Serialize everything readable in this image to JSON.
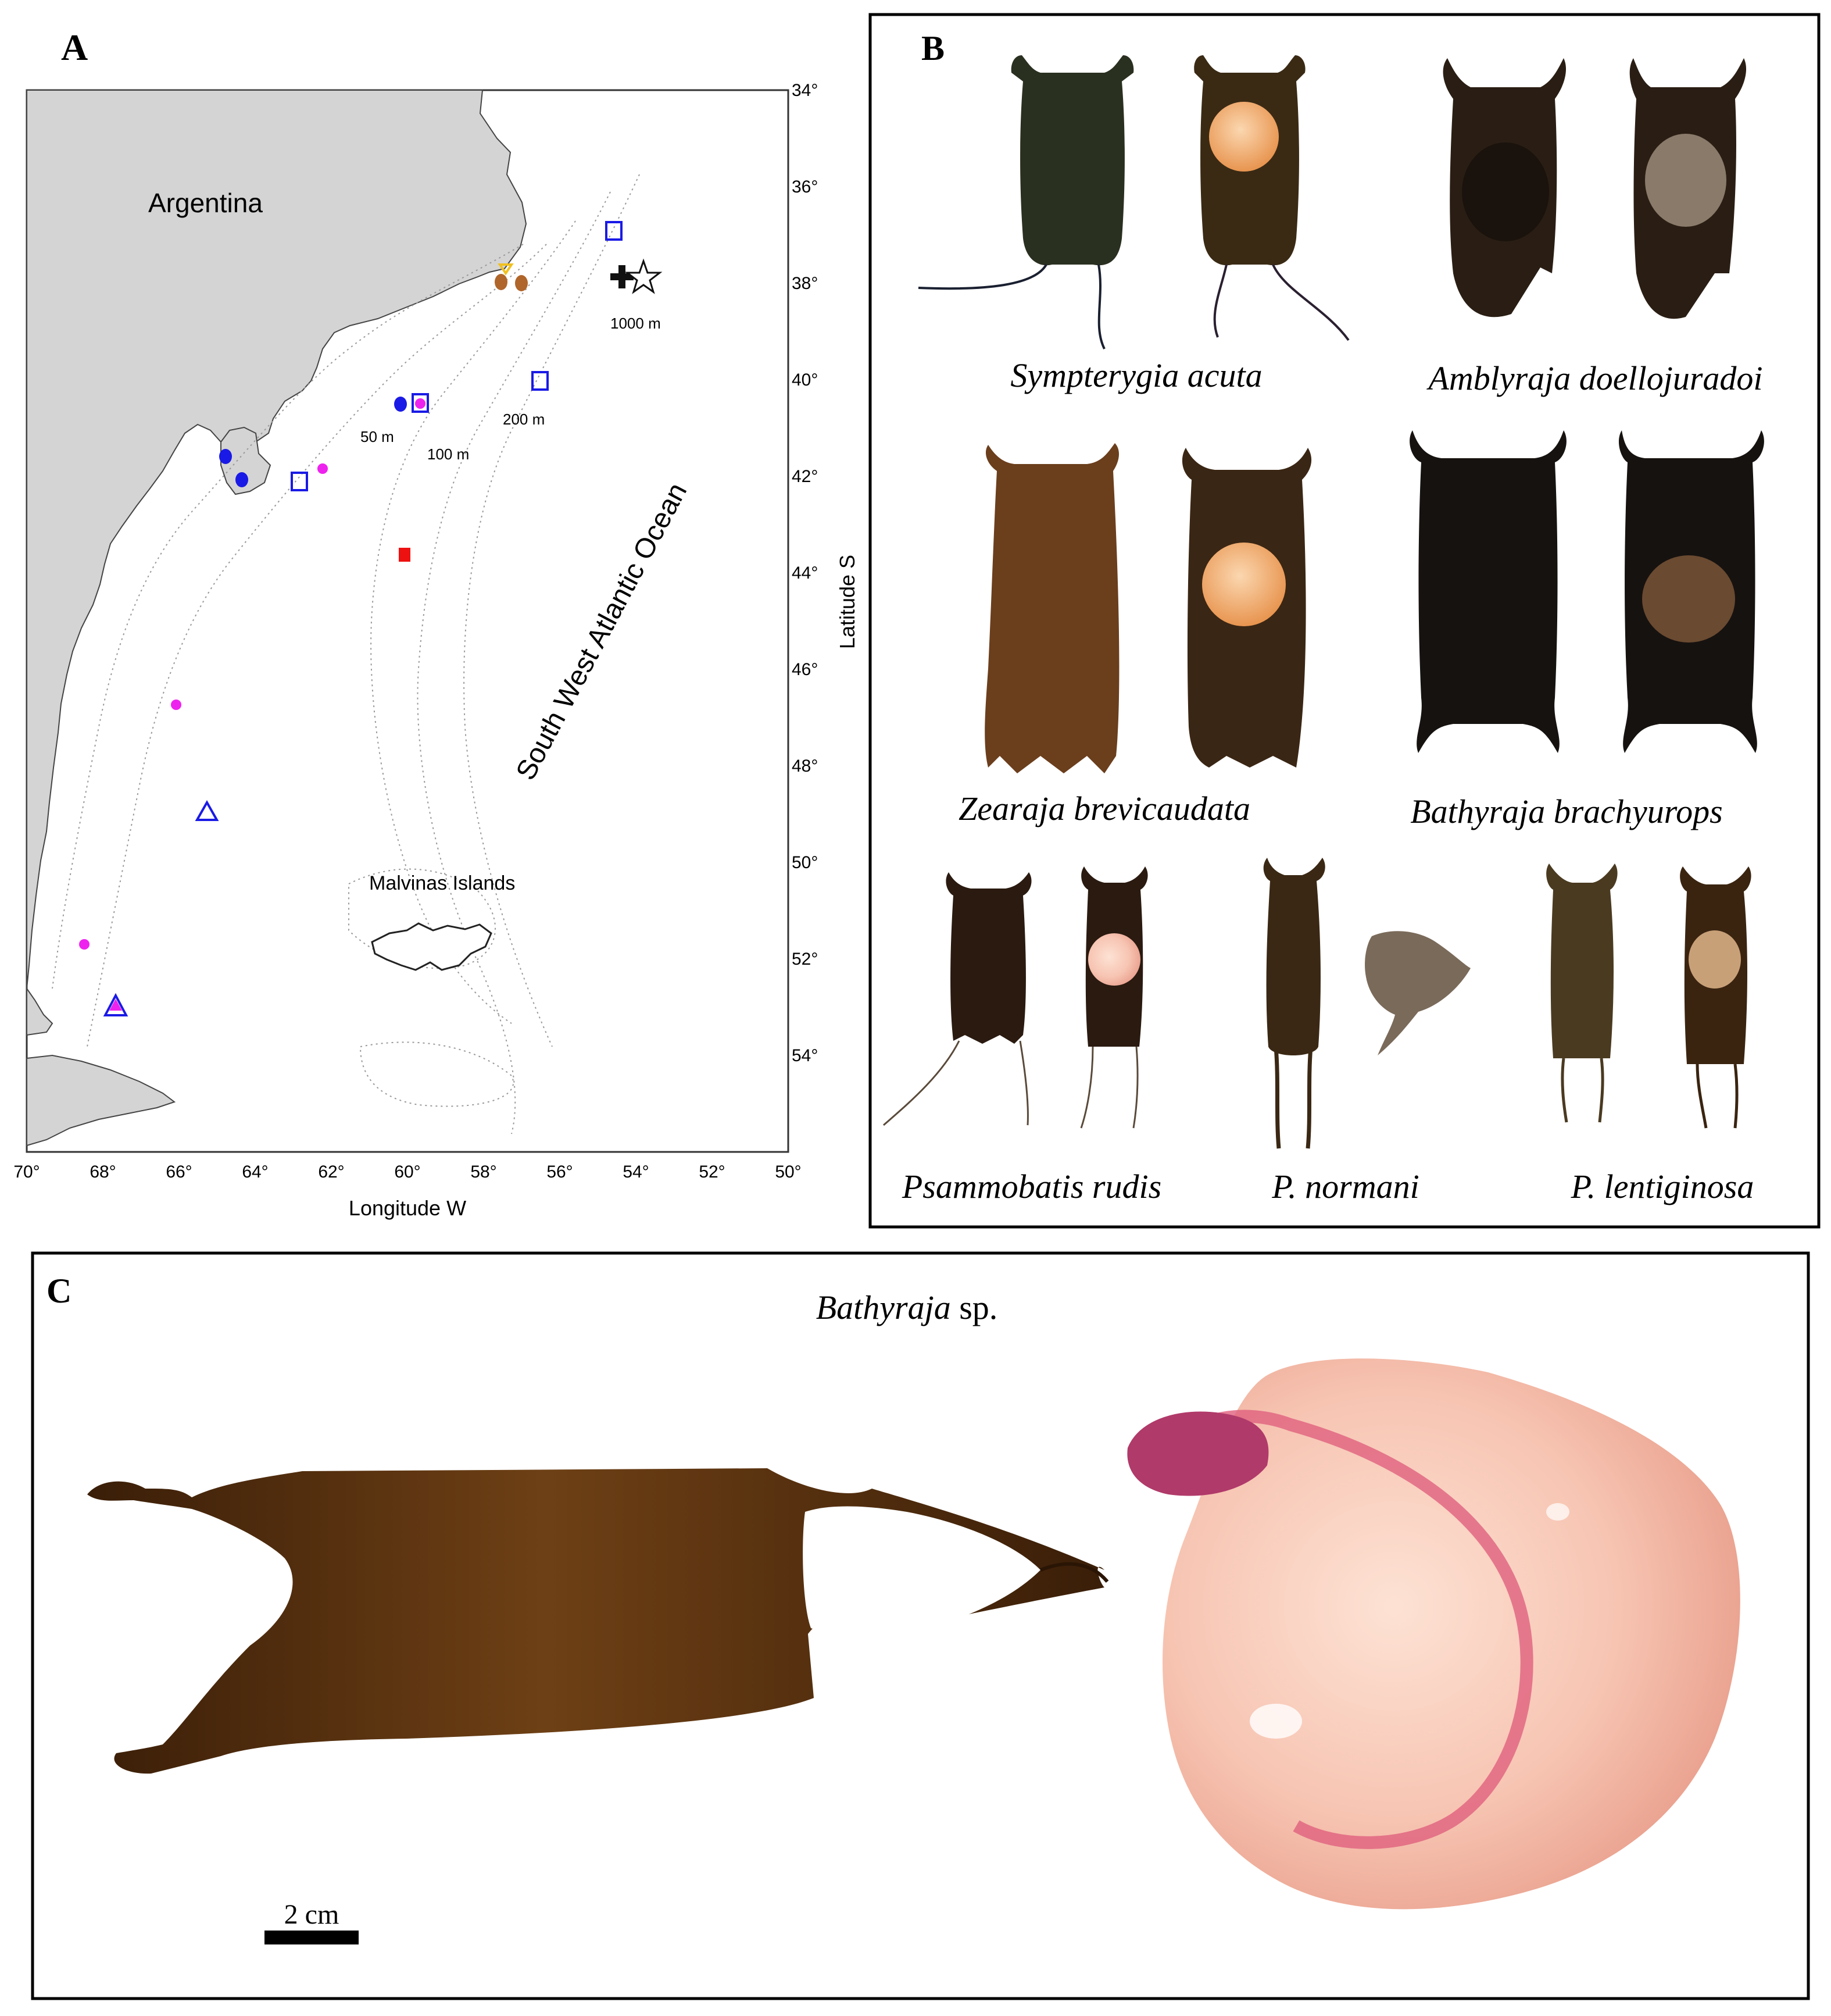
{
  "panel_a": {
    "label": "A",
    "country": "Argentina",
    "ocean": "South West Atlantic Ocean",
    "islands": "Malvinas Islands",
    "x_axis_title": "Longitude W",
    "y_axis_title": "Latitude S",
    "longitude_ticks": [
      "70°",
      "68°",
      "66°",
      "64°",
      "62°",
      "60°",
      "58°",
      "56°",
      "54°",
      "52°",
      "50°"
    ],
    "latitude_ticks": [
      "34°",
      "36°",
      "38°",
      "40°",
      "42°",
      "44°",
      "46°",
      "48°",
      "50°",
      "52°",
      "54°"
    ],
    "isobaths": [
      "50 m",
      "100 m",
      "200 m",
      "1000 m"
    ],
    "colors": {
      "land": "#d4d4d4",
      "blue": "#1a1ae6",
      "magenta": "#ee22ee",
      "brown": "#b0652a",
      "red": "#ee1111",
      "yellow": "#f0c020"
    }
  },
  "panel_b": {
    "label": "B",
    "species": [
      "Sympterygia acuta",
      "Amblyraja doellojuradoi",
      "Zearaja brevicaudata",
      "Bathyraja brachyurops",
      "Psammobatis rudis",
      "P. normani",
      "P. lentiginosa"
    ],
    "colors": {
      "capsule_dark": "#1e1710",
      "capsule_brown": "#6b3e1c",
      "capsule_green": "#2a3020",
      "yolk": "#f4a060"
    }
  },
  "panel_c": {
    "label": "C",
    "title_genus": "Bathyraja",
    "title_suffix": " sp.",
    "scale_label": "2 cm",
    "colors": {
      "capsule": "#4a2a0e",
      "yolk": "#f6c6b4",
      "vessel": "#d8406a"
    }
  }
}
